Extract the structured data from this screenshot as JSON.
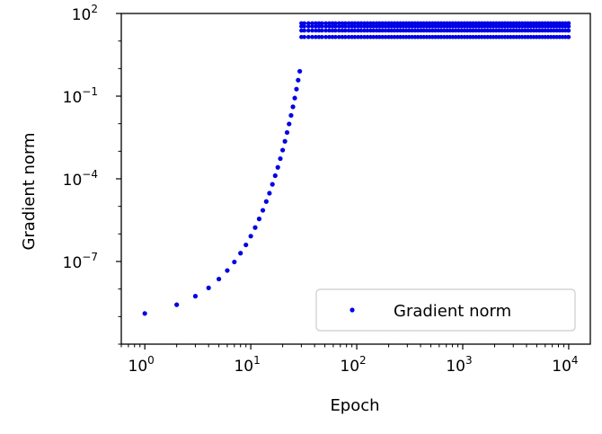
{
  "chart_data": {
    "type": "scatter",
    "title": "",
    "xlabel": "Epoch",
    "ylabel": "Gradient norm",
    "x_scale": "log",
    "y_scale": "log",
    "xlim": [
      0.6,
      16000
    ],
    "ylim": [
      1e-10,
      100
    ],
    "grid": false,
    "legend_position": "lower-right",
    "marker_color": "#0000e6",
    "x_ticks": [
      {
        "base": "10",
        "exp": "0",
        "value": 1
      },
      {
        "base": "10",
        "exp": "1",
        "value": 10
      },
      {
        "base": "10",
        "exp": "2",
        "value": 100
      },
      {
        "base": "10",
        "exp": "3",
        "value": 1000
      },
      {
        "base": "10",
        "exp": "4",
        "value": 10000
      }
    ],
    "y_ticks": [
      {
        "base": "10",
        "exp": "2",
        "value": 100
      },
      {
        "base": "10",
        "exp": "−1",
        "value": 0.1
      },
      {
        "base": "10",
        "exp": "−4",
        "value": 0.0001
      },
      {
        "base": "10",
        "exp": "−7",
        "value": 1e-07
      }
    ],
    "series": [
      {
        "name": "Gradient norm",
        "growth": {
          "x": [
            1,
            2,
            3,
            4,
            5,
            6,
            7,
            8,
            9,
            10,
            11,
            12,
            13,
            14,
            15,
            16,
            17,
            18,
            19,
            20,
            21,
            22,
            23,
            24,
            25,
            26,
            27,
            28,
            29
          ],
          "y": [
            1.3e-09,
            2.7e-09,
            5.5e-09,
            1.1e-08,
            2.3e-08,
            4.7e-08,
            9.6e-08,
            2e-07,
            4e-07,
            8.3e-07,
            1.7e-06,
            3.5e-06,
            7.2e-06,
            1.5e-05,
            3e-05,
            6.3e-05,
            0.00013,
            0.00026,
            0.00054,
            0.0011,
            0.0023,
            0.0048,
            0.0098,
            0.02,
            0.041,
            0.085,
            0.18,
            0.38,
            0.8
          ]
        },
        "plateau": {
          "x_start": 30,
          "x_end": 10000,
          "levels": [
            14,
            24,
            34,
            44
          ]
        }
      }
    ]
  }
}
